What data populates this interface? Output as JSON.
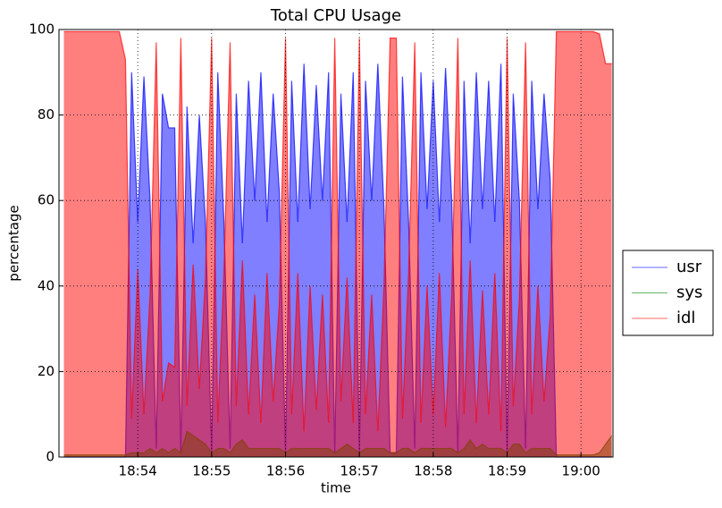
{
  "chart_data": {
    "type": "area",
    "title": "Total CPU Usage",
    "x_label": "time",
    "y_label": "percentage",
    "x": [
      "18:53:00",
      "18:53:05",
      "18:53:10",
      "18:53:15",
      "18:53:20",
      "18:53:25",
      "18:53:30",
      "18:53:35",
      "18:53:40",
      "18:53:45",
      "18:53:50",
      "18:53:55",
      "18:54:00",
      "18:54:05",
      "18:54:10",
      "18:54:15",
      "18:54:20",
      "18:54:25",
      "18:54:30",
      "18:54:35",
      "18:54:40",
      "18:54:45",
      "18:54:50",
      "18:54:55",
      "18:55:00",
      "18:55:05",
      "18:55:10",
      "18:55:15",
      "18:55:20",
      "18:55:25",
      "18:55:30",
      "18:55:35",
      "18:55:40",
      "18:55:45",
      "18:55:50",
      "18:55:55",
      "18:56:00",
      "18:56:05",
      "18:56:10",
      "18:56:15",
      "18:56:20",
      "18:56:25",
      "18:56:30",
      "18:56:35",
      "18:56:40",
      "18:56:45",
      "18:56:50",
      "18:56:55",
      "18:57:00",
      "18:57:05",
      "18:57:10",
      "18:57:15",
      "18:57:20",
      "18:57:25",
      "18:57:30",
      "18:57:35",
      "18:57:40",
      "18:57:45",
      "18:57:50",
      "18:57:55",
      "18:58:00",
      "18:58:05",
      "18:58:10",
      "18:58:15",
      "18:58:20",
      "18:58:25",
      "18:58:30",
      "18:58:35",
      "18:58:40",
      "18:58:45",
      "18:58:50",
      "18:58:55",
      "18:59:00",
      "18:59:05",
      "18:59:10",
      "18:59:15",
      "18:59:20",
      "18:59:25",
      "18:59:30",
      "18:59:35",
      "18:59:40",
      "18:59:45",
      "18:59:50",
      "18:59:55",
      "19:00:00",
      "19:00:05",
      "19:00:10",
      "19:00:15",
      "19:00:20",
      "19:00:25"
    ],
    "series": [
      {
        "name": "usr",
        "color": "#0000ff",
        "values": [
          0,
          0,
          0,
          0,
          0,
          0,
          0,
          0,
          0,
          0,
          0,
          90,
          55,
          89,
          60,
          2,
          85,
          77,
          77,
          1,
          82,
          50,
          80,
          55,
          1,
          90,
          55,
          2,
          85,
          50,
          88,
          60,
          90,
          55,
          85,
          62,
          1,
          88,
          55,
          92,
          58,
          87,
          60,
          90,
          1,
          85,
          55,
          90,
          1,
          88,
          60,
          92,
          58,
          1,
          1,
          89,
          55,
          2,
          90,
          58,
          88,
          55,
          91,
          60,
          1,
          88,
          50,
          90,
          58,
          88,
          55,
          92,
          1,
          85,
          60,
          2,
          88,
          58,
          85,
          65,
          0,
          0,
          0,
          0,
          0,
          0,
          0,
          0,
          0,
          0
        ]
      },
      {
        "name": "sys",
        "color": "#008000",
        "values": [
          0.5,
          0.5,
          0.5,
          0.5,
          0.5,
          0.5,
          0.5,
          0.5,
          0.5,
          0.5,
          0.5,
          1,
          1,
          1,
          2,
          1,
          2,
          1,
          2,
          1,
          6,
          5,
          4,
          3,
          1,
          2,
          2,
          1,
          3,
          4,
          2,
          2,
          2,
          2,
          2,
          2,
          1,
          2,
          2,
          2,
          2,
          2,
          2,
          2,
          1,
          2,
          3,
          2,
          1,
          2,
          2,
          2,
          2,
          1,
          1,
          2,
          2,
          1,
          2,
          2,
          2,
          2,
          2,
          2,
          1,
          2,
          4,
          2,
          3,
          2,
          2,
          2,
          1,
          3,
          3,
          1,
          2,
          2,
          2,
          2,
          0.5,
          0.5,
          0.5,
          0.5,
          0.5,
          0.5,
          0.5,
          1,
          3,
          5
        ]
      },
      {
        "name": "idl",
        "color": "#ff0000",
        "values": [
          99.5,
          99.5,
          99.5,
          99.5,
          99.5,
          99.5,
          99.5,
          99.5,
          99.5,
          99.5,
          93,
          9,
          44,
          10,
          38,
          97,
          13,
          22,
          21,
          98,
          12,
          45,
          16,
          42,
          98,
          8,
          43,
          97,
          12,
          46,
          10,
          38,
          8,
          43,
          13,
          36,
          98,
          10,
          43,
          6,
          40,
          11,
          38,
          8,
          98,
          13,
          42,
          8,
          98,
          10,
          38,
          6,
          40,
          98,
          98,
          9,
          43,
          97,
          8,
          40,
          10,
          43,
          7,
          38,
          98,
          10,
          46,
          8,
          39,
          10,
          43,
          6,
          98,
          12,
          37,
          97,
          10,
          40,
          13,
          33,
          99.5,
          99.5,
          99.5,
          99.5,
          99.5,
          99.5,
          99.5,
          99,
          92,
          92
        ]
      }
    ],
    "xlim": [
      "18:52:56",
      "19:00:26"
    ],
    "xticks": [
      "18:54",
      "18:55",
      "18:56",
      "18:57",
      "18:58",
      "18:59",
      "19:00"
    ],
    "ylim": [
      0,
      100
    ],
    "yticks": [
      0,
      20,
      40,
      60,
      80,
      100
    ],
    "grid": true,
    "legend": "outside right"
  }
}
